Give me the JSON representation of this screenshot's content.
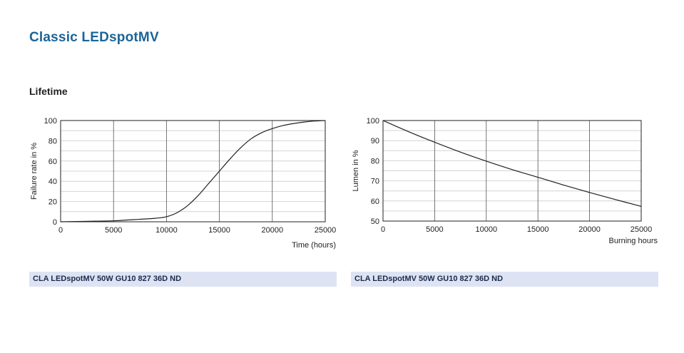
{
  "page": {
    "title": "Classic LEDspotMV",
    "section": "Lifetime"
  },
  "colors": {
    "title": "#1a6496",
    "caption_bg": "#dde3f3",
    "curve": "#222222",
    "grid": "#cccccc"
  },
  "chart_data": [
    {
      "type": "line",
      "title": "",
      "xlabel": "Time (hours)",
      "ylabel": "Failure rate in %",
      "xlim": [
        0,
        25000
      ],
      "ylim": [
        0,
        100
      ],
      "xticks": [
        0,
        5000,
        10000,
        15000,
        20000,
        25000
      ],
      "yticks": [
        0,
        20,
        40,
        60,
        80,
        100
      ],
      "grid": true,
      "caption": "CLA LEDspotMV 50W GU10 827 36D ND",
      "x": [
        0,
        2500,
        5000,
        7500,
        9000,
        10000,
        11000,
        12000,
        13000,
        14000,
        15000,
        16000,
        17000,
        18000,
        19000,
        20000,
        21000,
        22000,
        23000,
        24000,
        25000
      ],
      "y": [
        0,
        0.5,
        1,
        2.5,
        3.5,
        5,
        9,
        16,
        26,
        38,
        50,
        62,
        73,
        82,
        88,
        92,
        95,
        97,
        98.5,
        99.5,
        100
      ]
    },
    {
      "type": "line",
      "title": "",
      "xlabel": "Burning hours",
      "ylabel": "Lumen in %",
      "xlim": [
        0,
        25000
      ],
      "ylim": [
        50,
        100
      ],
      "xticks": [
        0,
        5000,
        10000,
        15000,
        20000,
        25000
      ],
      "yticks": [
        50,
        60,
        70,
        80,
        90,
        100
      ],
      "grid": true,
      "caption": "CLA LEDspotMV 50W GU10 827 36D ND",
      "x": [
        0,
        2500,
        5000,
        7500,
        10000,
        12500,
        15000,
        17500,
        20000,
        22500,
        25000
      ],
      "y": [
        100,
        94.4,
        89.2,
        84.3,
        79.8,
        75.6,
        71.8,
        67.9,
        64.2,
        60.7,
        57.3
      ]
    }
  ]
}
